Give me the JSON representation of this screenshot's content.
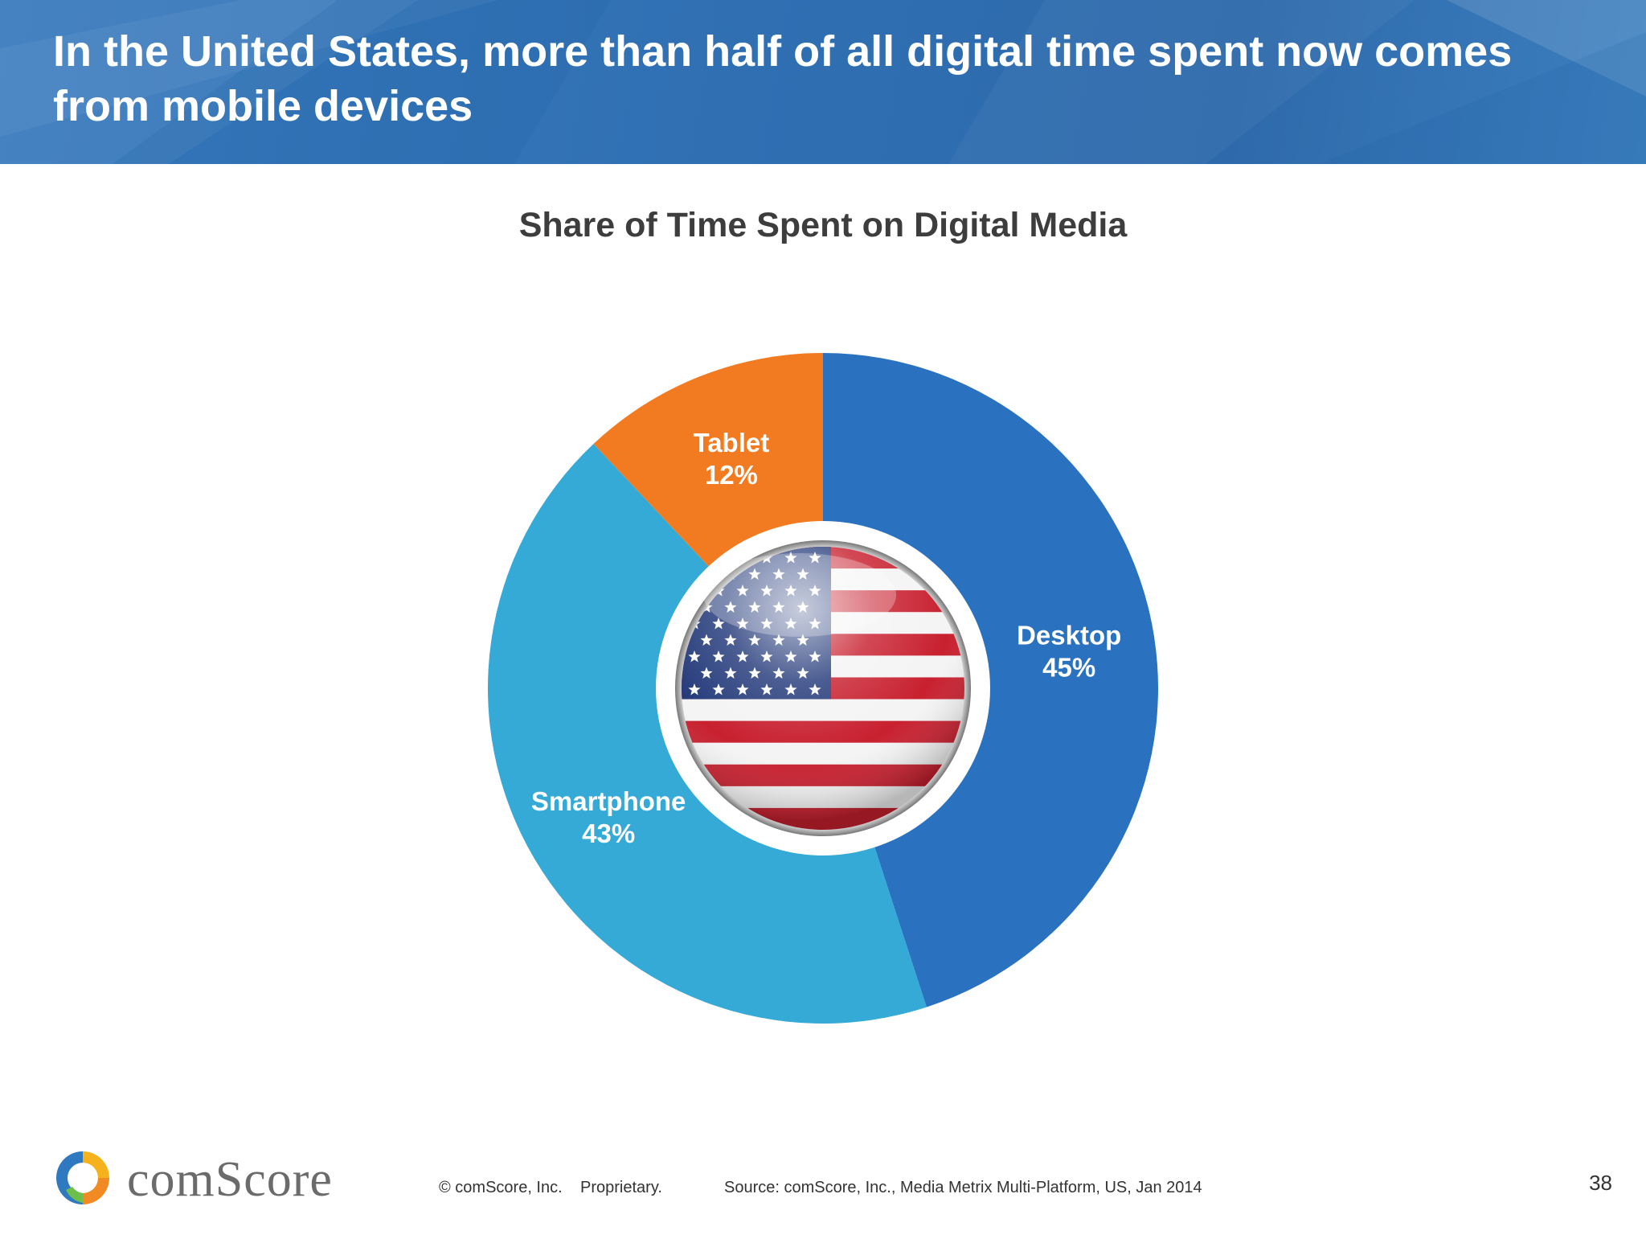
{
  "header": {
    "title": "In the United States, more than half of all digital time spent now comes from mobile devices"
  },
  "chart_data": {
    "type": "pie",
    "title": "Share of Time Spent on Digital Media",
    "style": "donut",
    "center_image": "us-flag-button-icon",
    "slices": [
      {
        "name": "Desktop",
        "value": 45,
        "label": "45%",
        "color": "#2a72bf"
      },
      {
        "name": "Smartphone",
        "value": 43,
        "label": "43%",
        "color": "#35aad6"
      },
      {
        "name": "Tablet",
        "value": 12,
        "label": "12%",
        "color": "#f27b21"
      }
    ]
  },
  "footer": {
    "logo_text": "comScore",
    "copyright": "© comScore, Inc.",
    "proprietary": "Proprietary.",
    "source": "Source: comScore, Inc., Media Metrix Multi-Platform, US, Jan 2014",
    "page_number": "38"
  },
  "colors": {
    "header_blue": "#2f6fb2",
    "title_text": "#3d3d3d",
    "desktop": "#2a72bf",
    "smartphone": "#35aad6",
    "tablet": "#f27b21"
  }
}
